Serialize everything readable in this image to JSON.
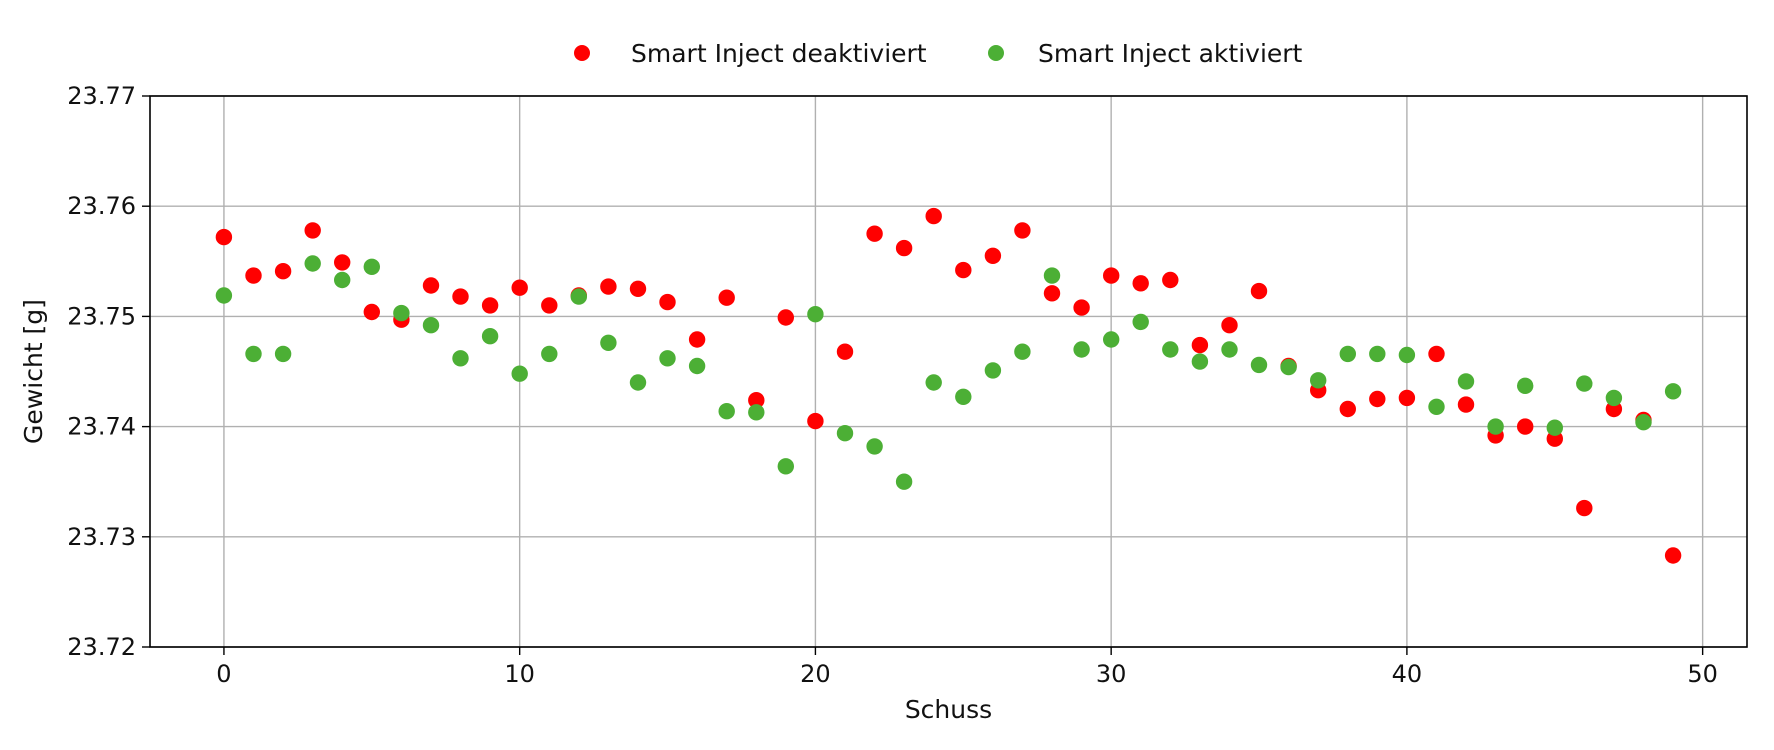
{
  "chart_data": {
    "type": "scatter",
    "title": "",
    "xlabel": "Schuss",
    "ylabel": "Gewicht [g]",
    "xlim": [
      -2.5,
      51.5
    ],
    "ylim": [
      23.72,
      23.77
    ],
    "xticks": [
      "0",
      "10",
      "20",
      "30",
      "40",
      "50"
    ],
    "yticks": [
      "23.72",
      "23.73",
      "23.74",
      "23.75",
      "23.76",
      "23.77"
    ],
    "grid": true,
    "legend_position": "top-center",
    "series": [
      {
        "name": "Smart Inject deaktiviert",
        "color": "#ff0000",
        "x": [
          0,
          1,
          2,
          3,
          4,
          5,
          6,
          7,
          8,
          9,
          10,
          11,
          12,
          13,
          14,
          15,
          16,
          17,
          18,
          19,
          20,
          21,
          22,
          23,
          24,
          25,
          26,
          27,
          28,
          29,
          30,
          31,
          32,
          33,
          34,
          35,
          36,
          37,
          38,
          39,
          40,
          41,
          42,
          43,
          44,
          45,
          46,
          47,
          48,
          49
        ],
        "y": [
          23.7572,
          23.7537,
          23.7541,
          23.7578,
          23.7549,
          23.7504,
          23.7497,
          23.7528,
          23.7518,
          23.751,
          23.7526,
          23.751,
          23.7519,
          23.7527,
          23.7525,
          23.7513,
          23.7479,
          23.7517,
          23.7424,
          23.7499,
          23.7405,
          23.7468,
          23.7575,
          23.7562,
          23.7591,
          23.7542,
          23.7555,
          23.7578,
          23.7521,
          23.7508,
          23.7537,
          23.753,
          23.7533,
          23.7474,
          23.7492,
          23.7523,
          23.7455,
          23.7433,
          23.7416,
          23.7425,
          23.7426,
          23.7466,
          23.742,
          23.7392,
          23.74,
          23.7389,
          23.7326,
          23.7416,
          23.7406,
          23.7283
        ]
      },
      {
        "name": "Smart Inject aktiviert",
        "color": "#4caf35",
        "x": [
          0,
          1,
          2,
          3,
          4,
          5,
          6,
          7,
          8,
          9,
          10,
          11,
          12,
          13,
          14,
          15,
          16,
          17,
          18,
          19,
          20,
          21,
          22,
          23,
          24,
          25,
          26,
          27,
          28,
          29,
          30,
          31,
          32,
          33,
          34,
          35,
          36,
          37,
          38,
          39,
          40,
          41,
          42,
          43,
          44,
          45,
          46,
          47,
          48,
          49
        ],
        "y": [
          23.7519,
          23.7466,
          23.7466,
          23.7548,
          23.7533,
          23.7545,
          23.7503,
          23.7492,
          23.7462,
          23.7482,
          23.7448,
          23.7466,
          23.7518,
          23.7476,
          23.744,
          23.7462,
          23.7455,
          23.7414,
          23.7413,
          23.7364,
          23.7502,
          23.7394,
          23.7382,
          23.735,
          23.744,
          23.7427,
          23.7451,
          23.7468,
          23.7537,
          23.747,
          23.7479,
          23.7495,
          23.747,
          23.7459,
          23.747,
          23.7456,
          23.7454,
          23.7442,
          23.7466,
          23.7466,
          23.7465,
          23.7418,
          23.7441,
          23.74,
          23.7437,
          23.7399,
          23.7439,
          23.7426,
          23.7404,
          23.7432
        ]
      }
    ]
  }
}
